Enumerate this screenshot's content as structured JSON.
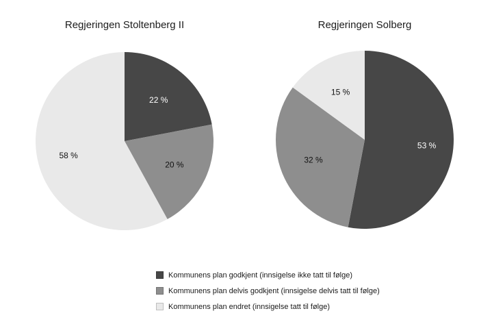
{
  "chart_data": [
    {
      "type": "pie",
      "title": "Regjeringen Stoltenberg II",
      "categories": [
        "Kommunens plan godkjent (innsigelse ikke tatt til følge)",
        "Kommunens plan delvis godkjent (innsigelse delvis tatt til følge)",
        "Kommunens plan endret (innsigelse tatt til følge)"
      ],
      "values": [
        22,
        20,
        58
      ],
      "slice_labels": [
        "22 %",
        "20 %",
        "58 %"
      ],
      "colors": [
        "#474747",
        "#8e8e8e",
        "#e9e9e9"
      ],
      "label_colors": [
        "#ffffff",
        "#111111",
        "#111111"
      ],
      "label_radius": [
        0.6,
        0.62,
        0.65
      ],
      "start_angle_deg": 0,
      "direction": "clockwise",
      "legend_position": "bottom"
    },
    {
      "type": "pie",
      "title": "Regjeringen Solberg",
      "categories": [
        "Kommunens plan godkjent (innsigelse ikke tatt til følge)",
        "Kommunens plan delvis godkjent (innsigelse delvis tatt til følge)",
        "Kommunens plan endret (innsigelse tatt til følge)"
      ],
      "values": [
        53,
        32,
        15
      ],
      "slice_labels": [
        "53 %",
        "32 %",
        "15 %"
      ],
      "colors": [
        "#474747",
        "#8e8e8e",
        "#e9e9e9"
      ],
      "label_colors": [
        "#ffffff",
        "#111111",
        "#111111"
      ],
      "label_radius": [
        0.7,
        0.62,
        0.6
      ],
      "start_angle_deg": 0,
      "direction": "clockwise",
      "legend_position": "bottom"
    }
  ],
  "legend": {
    "items": [
      {
        "label": "Kommunens plan  godkjent (innsigelse ikke tatt til følge)",
        "color": "#474747"
      },
      {
        "label": "Kommunens plan  delvis godkjent (innsigelse delvis tatt til følge)",
        "color": "#8e8e8e"
      },
      {
        "label": "Kommunens plan  endret (innsigelse tatt til følge)",
        "color": "#e9e9e9"
      }
    ]
  }
}
